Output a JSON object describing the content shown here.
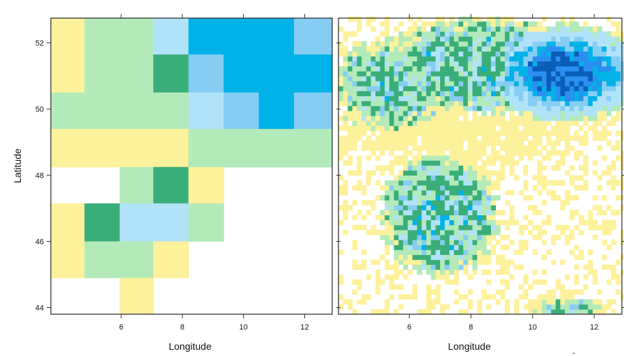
{
  "chart_data": [
    {
      "type": "heatmap",
      "panel": "left",
      "xlabel": "Longitude",
      "ylabel": "Latitude",
      "xlim": [
        3.7,
        12.9
      ],
      "ylim": [
        43.8,
        52.75
      ],
      "x_ticks": [
        6,
        8,
        10,
        12
      ],
      "y_ticks": [
        44,
        46,
        48,
        50,
        52
      ],
      "palette": {
        "0": "#ffffff",
        "1": "#fdf19b",
        "2": "#b3eab9",
        "3": "#3aae79",
        "4": "#b1e3f8",
        "5": "#85cdf3",
        "6": "#00b2e8"
      },
      "x_edges": [
        3.7,
        4.8,
        5.95,
        7.05,
        8.2,
        9.35,
        10.5,
        11.65,
        12.9
      ],
      "y_edges": [
        52.75,
        51.65,
        50.5,
        49.4,
        48.25,
        47.15,
        46.0,
        44.9,
        43.8
      ],
      "grid": [
        [
          1,
          2,
          2,
          4,
          6,
          6,
          6,
          5
        ],
        [
          1,
          2,
          2,
          3,
          5,
          6,
          6,
          6
        ],
        [
          2,
          2,
          2,
          2,
          4,
          5,
          6,
          5
        ],
        [
          1,
          1,
          1,
          1,
          2,
          2,
          2,
          2
        ],
        [
          0,
          0,
          2,
          3,
          1,
          0,
          0,
          0
        ],
        [
          1,
          3,
          4,
          4,
          2,
          0,
          0,
          0
        ],
        [
          1,
          2,
          2,
          1,
          0,
          0,
          0,
          0
        ],
        [
          0,
          0,
          1,
          0,
          0,
          0,
          0,
          0
        ]
      ]
    },
    {
      "type": "heatmap",
      "panel": "right",
      "xlabel": "Longitude",
      "ylabel": "",
      "xlim": [
        3.7,
        12.9
      ],
      "ylim": [
        43.8,
        52.75
      ],
      "x_ticks": [
        6,
        8,
        10,
        12
      ],
      "y_ticks": [
        44,
        46,
        48,
        50,
        52
      ],
      "palette": [
        "#ffffff",
        "#fdf19b",
        "#b3eab9",
        "#3aae79",
        "#b1e3f8",
        "#85cdf3",
        "#00b2e8",
        "#2a8ff0",
        "#0a5db8"
      ],
      "cell_size_deg": 0.15,
      "hotspots": [
        {
          "lon": 11.0,
          "lat": 51.1,
          "rx": 2.3,
          "ry": 1.25,
          "level": 8,
          "kind": "blue"
        },
        {
          "lon": 8.5,
          "lat": 51.3,
          "rx": 3.2,
          "ry": 1.3,
          "level": 4.5,
          "kind": "mixed"
        },
        {
          "lon": 5.4,
          "lat": 50.7,
          "rx": 1.8,
          "ry": 1.3,
          "level": 3.5,
          "kind": "mixed"
        },
        {
          "lon": 7.0,
          "lat": 46.8,
          "rx": 1.65,
          "ry": 1.55,
          "level": 5.5,
          "kind": "mixed"
        },
        {
          "lon": 11.2,
          "lat": 44.0,
          "rx": 1.2,
          "ry": 0.25,
          "level": 3,
          "kind": "mixed"
        },
        {
          "lon": 7.5,
          "lat": 49.3,
          "rx": 4.5,
          "ry": 0.9,
          "level": 1.5,
          "kind": "yellow"
        }
      ]
    }
  ],
  "stray_mark": "-"
}
